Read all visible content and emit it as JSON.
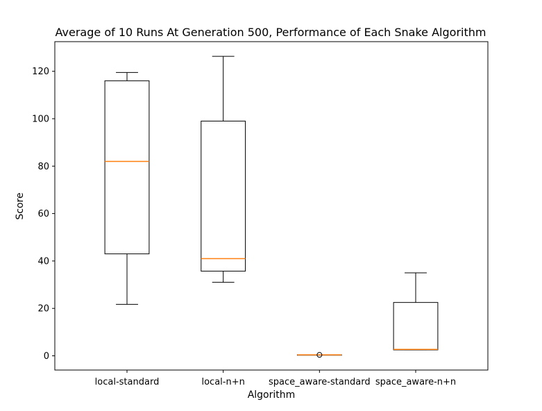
{
  "chart_data": {
    "type": "box",
    "title": "Average of 10 Runs At Generation 500, Performance of Each Snake Algorithm",
    "xlabel": "Algorithm",
    "ylabel": "Score",
    "ylim": [
      -6,
      132.5
    ],
    "yticks": [
      0,
      20,
      40,
      60,
      80,
      100,
      120
    ],
    "grid": false,
    "categories": [
      "local-standard",
      "local-n+n",
      "space_aware-standard",
      "space_aware-n+n"
    ],
    "boxes": [
      {
        "category": "local-standard",
        "whisker_low": 21.7,
        "q1": 43,
        "median": 82,
        "q3": 116,
        "whisker_high": 119.5,
        "outliers": []
      },
      {
        "category": "local-n+n",
        "whisker_low": 31,
        "q1": 35.7,
        "median": 41,
        "q3": 99,
        "whisker_high": 126.3,
        "outliers": []
      },
      {
        "category": "space_aware-standard",
        "whisker_low": 0.4,
        "q1": 0.4,
        "median": 0.4,
        "q3": 0.4,
        "whisker_high": 0.4,
        "outliers": [
          0.4
        ]
      },
      {
        "category": "space_aware-n+n",
        "whisker_low": 2.5,
        "q1": 2.5,
        "median": 2.7,
        "q3": 22.5,
        "whisker_high": 35,
        "outliers": []
      }
    ],
    "colors": {
      "box": "#000000",
      "median": "#ff7f0e",
      "background": "#ffffff"
    }
  }
}
